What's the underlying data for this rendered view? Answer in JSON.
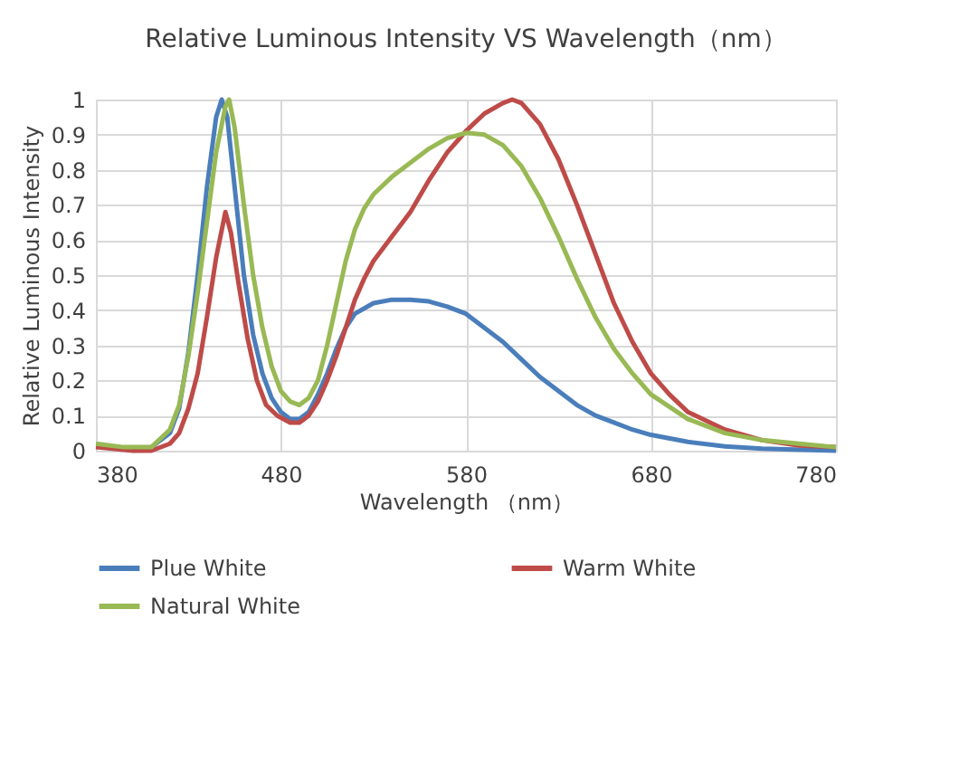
{
  "chart_data": {
    "type": "line",
    "title": "Relative Luminous Intensity VS Wavelength（nm）",
    "xlabel": "Wavelength        （nm）",
    "ylabel": "Relative Luminous Intensity",
    "xlim": [
      380,
      780
    ],
    "xticks": [
      380,
      480,
      580,
      680,
      780
    ],
    "ylim": [
      0,
      1
    ],
    "yticks": [
      0,
      0.1,
      0.2,
      0.3,
      0.4,
      0.5,
      0.6,
      0.7,
      0.8,
      0.9,
      1
    ],
    "grid": true,
    "legend": "bottom",
    "marker": "none",
    "line_style": "solid",
    "series": [
      {
        "name": "Plue White",
        "color": "#4a7ebb",
        "x": [
          400,
          410,
          420,
          425,
          430,
          435,
          440,
          445,
          448,
          451,
          455,
          460,
          465,
          470,
          475,
          480,
          485,
          490,
          495,
          500,
          505,
          510,
          515,
          520,
          530,
          540,
          550,
          560,
          570,
          580,
          590,
          600,
          610,
          620,
          630,
          640,
          650,
          660,
          670,
          680,
          700,
          720,
          740,
          780
        ],
        "values": [
          0.0,
          0.01,
          0.05,
          0.12,
          0.28,
          0.5,
          0.75,
          0.95,
          1.0,
          0.95,
          0.75,
          0.5,
          0.33,
          0.22,
          0.15,
          0.11,
          0.09,
          0.09,
          0.11,
          0.16,
          0.22,
          0.29,
          0.35,
          0.39,
          0.42,
          0.43,
          0.43,
          0.425,
          0.41,
          0.39,
          0.35,
          0.31,
          0.26,
          0.21,
          0.17,
          0.13,
          0.1,
          0.08,
          0.06,
          0.045,
          0.025,
          0.012,
          0.006,
          0.0
        ]
      },
      {
        "name": "Warm White",
        "color": "#be4b48",
        "x": [
          380,
          400,
          410,
          420,
          425,
          430,
          435,
          440,
          445,
          450,
          453,
          457,
          462,
          467,
          472,
          478,
          485,
          490,
          495,
          500,
          505,
          510,
          515,
          520,
          525,
          530,
          540,
          550,
          560,
          570,
          580,
          590,
          600,
          605,
          610,
          620,
          630,
          640,
          650,
          660,
          670,
          680,
          690,
          700,
          720,
          740,
          760,
          780
        ],
        "values": [
          0.01,
          0.0,
          0.0,
          0.02,
          0.05,
          0.12,
          0.22,
          0.38,
          0.55,
          0.68,
          0.62,
          0.48,
          0.32,
          0.2,
          0.13,
          0.1,
          0.08,
          0.08,
          0.1,
          0.14,
          0.2,
          0.27,
          0.35,
          0.43,
          0.49,
          0.54,
          0.61,
          0.68,
          0.77,
          0.85,
          0.91,
          0.96,
          0.99,
          1.0,
          0.99,
          0.93,
          0.83,
          0.7,
          0.56,
          0.42,
          0.31,
          0.22,
          0.16,
          0.11,
          0.06,
          0.03,
          0.015,
          0.01
        ]
      },
      {
        "name": "Natural White",
        "color": "#98b954",
        "x": [
          380,
          395,
          410,
          420,
          425,
          430,
          435,
          440,
          445,
          450,
          452,
          455,
          460,
          465,
          470,
          475,
          480,
          485,
          490,
          495,
          500,
          505,
          510,
          515,
          520,
          525,
          530,
          540,
          550,
          560,
          570,
          580,
          590,
          600,
          610,
          620,
          630,
          640,
          650,
          660,
          670,
          680,
          700,
          720,
          740,
          760,
          780
        ],
        "values": [
          0.02,
          0.01,
          0.01,
          0.06,
          0.13,
          0.27,
          0.45,
          0.65,
          0.85,
          0.98,
          1.0,
          0.92,
          0.7,
          0.5,
          0.35,
          0.24,
          0.17,
          0.14,
          0.13,
          0.15,
          0.2,
          0.3,
          0.42,
          0.54,
          0.63,
          0.69,
          0.73,
          0.78,
          0.82,
          0.86,
          0.89,
          0.905,
          0.9,
          0.87,
          0.81,
          0.72,
          0.61,
          0.49,
          0.38,
          0.29,
          0.22,
          0.16,
          0.09,
          0.05,
          0.03,
          0.02,
          0.01
        ]
      }
    ]
  }
}
